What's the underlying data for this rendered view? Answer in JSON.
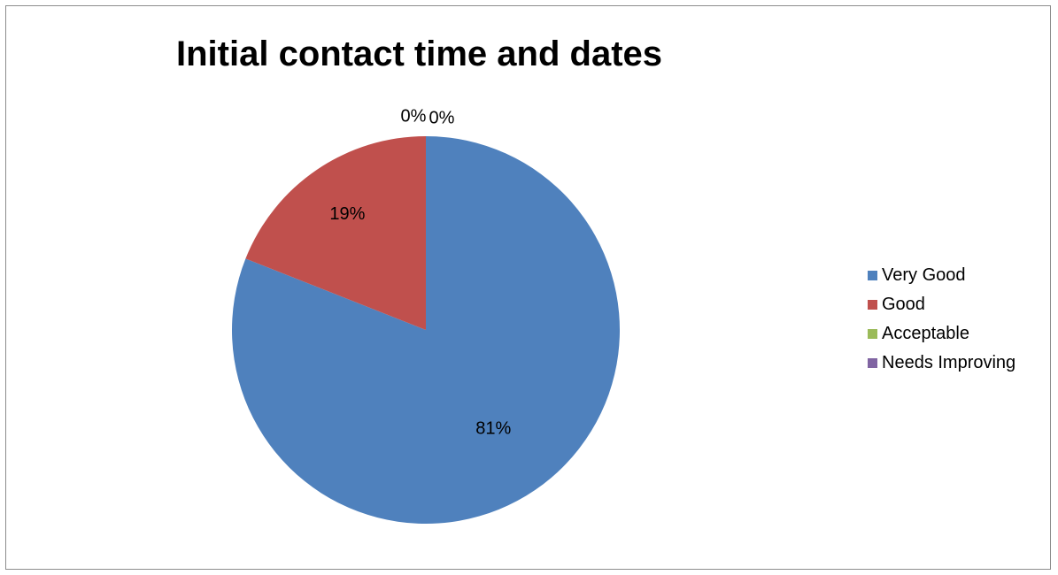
{
  "chart_data": {
    "type": "pie",
    "title": "Initial contact time and dates",
    "categories": [
      "Very Good",
      "Good",
      "Acceptable",
      "Needs Improving"
    ],
    "values": [
      81,
      19,
      0,
      0
    ],
    "data_labels": [
      "81%",
      "19%",
      "0%",
      "0%"
    ],
    "colors": [
      "#4f81bd",
      "#c0504d",
      "#9bbb59",
      "#8064a2"
    ],
    "legend_position": "right",
    "start_angle": "12 o'clock",
    "direction": "clockwise"
  }
}
